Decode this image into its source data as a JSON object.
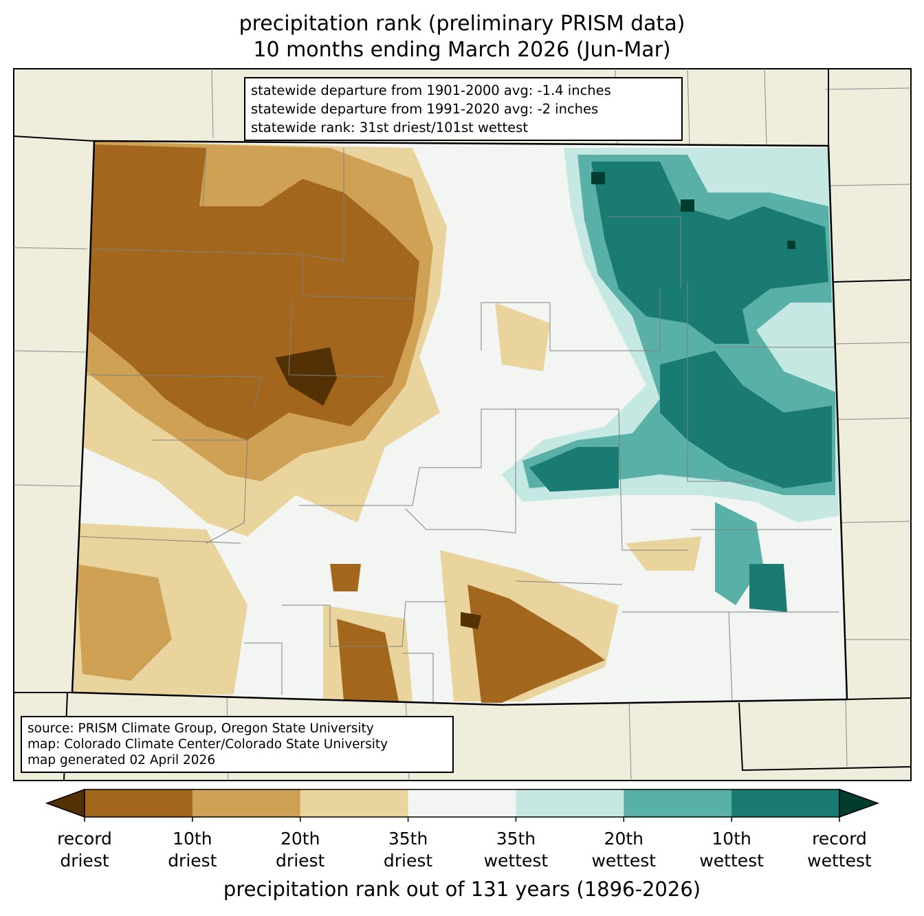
{
  "title": {
    "line1": "precipitation rank (preliminary PRISM data)",
    "line2": "10 months ending March 2026 (Jun-Mar)"
  },
  "stats_box": {
    "lines": [
      "statewide departure from 1901-2000 avg: -1.4 inches",
      "statewide departure from 1991-2020 avg: -2 inches",
      "statewide rank: 31st driest/101st wettest"
    ]
  },
  "credits_box": {
    "lines": [
      "source: PRISM Climate Group, Oregon State University",
      "map: Colorado Climate Center/Colorado State University",
      "map generated 02 April 2026"
    ]
  },
  "colorbar": {
    "label": "precipitation rank out of 131 years (1896-2026)",
    "ticks": [
      {
        "line1": "record",
        "line2": "driest"
      },
      {
        "line1": "10th",
        "line2": "driest"
      },
      {
        "line1": "20th",
        "line2": "driest"
      },
      {
        "line1": "35th",
        "line2": "driest"
      },
      {
        "line1": "35th",
        "line2": "wettest"
      },
      {
        "line1": "20th",
        "line2": "wettest"
      },
      {
        "line1": "10th",
        "line2": "wettest"
      },
      {
        "line1": "record",
        "line2": "wettest"
      }
    ],
    "colors": {
      "below_record_dry": "#543005",
      "segments": [
        "#a3661d",
        "#cfa155",
        "#e9d49d",
        "#f3f5f3",
        "#c5e9e2",
        "#58b0a6",
        "#1a7b73"
      ],
      "above_record_wet": "#013c30"
    }
  },
  "map_colors": {
    "background": "#efeedd",
    "state_border": "#000000",
    "county_border": "#808080"
  }
}
